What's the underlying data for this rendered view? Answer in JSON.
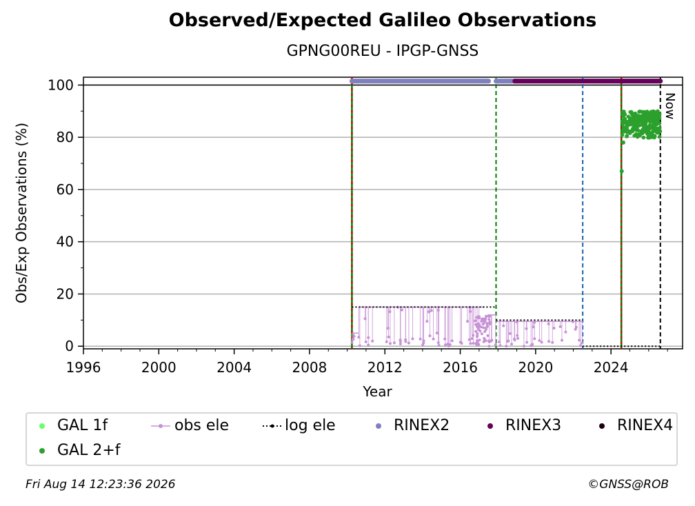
{
  "chart_data": {
    "type": "scatter",
    "title": "Observed/Expected Galileo Observations",
    "subtitle": "GPNG00REU - IPGP-GNSS",
    "xlabel": "Year",
    "ylabel": "Obs/Exp Observations (%)",
    "xlim": [
      1996,
      2027.8
    ],
    "ylim": [
      -1,
      103
    ],
    "x_ticks": [
      "1996",
      "2000",
      "2004",
      "2008",
      "2012",
      "2016",
      "2020",
      "2024"
    ],
    "y_ticks": [
      "0",
      "20",
      "40",
      "60",
      "80",
      "100"
    ],
    "grid": "horizontal",
    "now_label": "Now",
    "now_year": 2026.62,
    "series": [
      {
        "name": "GAL 1f",
        "color": "#66ff66",
        "points": []
      },
      {
        "name": "GAL 2+f",
        "color": "#2ca02c",
        "x_range": [
          2024.55,
          2026.62
        ],
        "typical_range": [
          82,
          90
        ],
        "outliers": [
          [
            2024.57,
            67
          ],
          [
            2024.65,
            78
          ]
        ]
      },
      {
        "name": "obs ele",
        "color": "#c792d6",
        "segments": [
          [
            2010.25,
            2010.6,
            5
          ],
          [
            2010.6,
            2017.3,
            15
          ],
          [
            2017.45,
            2017.9,
            12
          ],
          [
            2017.95,
            2022.5,
            9.5
          ]
        ]
      },
      {
        "name": "log ele",
        "color": "#000000",
        "segments": [
          [
            2010.25,
            2017.9,
            15
          ],
          [
            2017.9,
            2022.5,
            10
          ],
          [
            2022.5,
            2026.62,
            0
          ]
        ]
      },
      {
        "name": "RINEX2",
        "color": "#8080c0",
        "segments": [
          [
            2010.25,
            2017.5,
            101.5
          ],
          [
            2017.9,
            2018.9,
            101.5
          ]
        ]
      },
      {
        "name": "RINEX3",
        "color": "#66005a",
        "segments": [
          [
            2018.9,
            2026.62,
            101.5
          ]
        ]
      },
      {
        "name": "RINEX4",
        "color": "#1a0010",
        "segments": []
      }
    ],
    "event_lines": [
      {
        "year": 2010.25,
        "colors": [
          "#007a00",
          "#d40000"
        ]
      },
      {
        "year": 2017.9,
        "colors": [
          "#007a00"
        ]
      },
      {
        "year": 2022.5,
        "colors": [
          "#1060b0"
        ]
      },
      {
        "year": 2024.55,
        "colors": [
          "#007a00",
          "#d40000"
        ]
      },
      {
        "year": 2026.62,
        "colors": [
          "#000000"
        ]
      }
    ],
    "legend": [
      "GAL 1f",
      "obs ele",
      "log ele",
      "RINEX2",
      "RINEX3",
      "RINEX4",
      "GAL 2+f"
    ],
    "legend_placement": "bottom"
  },
  "footer": {
    "timestamp": "Fri Aug 14 12:23:36 2026",
    "credit": "©GNSS@ROB"
  }
}
